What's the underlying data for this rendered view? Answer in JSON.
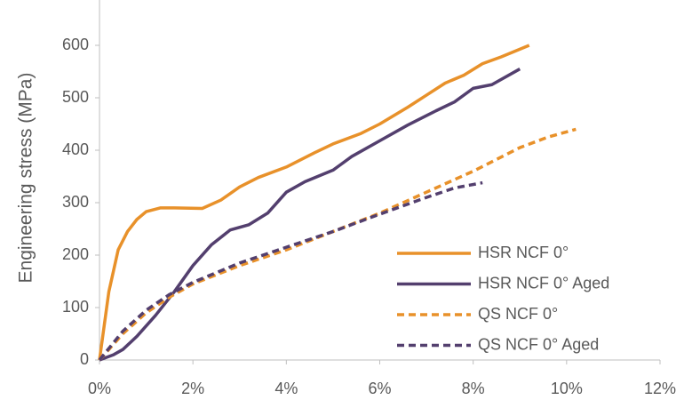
{
  "chart_data": {
    "type": "line",
    "y_label": "Engineering stress (MPa)",
    "xlim": [
      0,
      12
    ],
    "xticks": [
      {
        "value": 0,
        "label": "0%"
      },
      {
        "value": 2,
        "label": "2%"
      },
      {
        "value": 4,
        "label": "4%"
      },
      {
        "value": 6,
        "label": "6%"
      },
      {
        "value": 8,
        "label": "8%"
      },
      {
        "value": 10,
        "label": "10%"
      },
      {
        "value": 12,
        "label": "12%"
      }
    ],
    "ylim": [
      0,
      700
    ],
    "yticks": [
      0,
      100,
      200,
      300,
      400,
      500,
      600
    ],
    "grid": false,
    "legend": "lower right",
    "series": [
      {
        "name": "HSR NCF 0°",
        "color": "#e8912a",
        "dashed": false,
        "x": [
          0,
          0.2,
          0.4,
          0.6,
          0.8,
          1.0,
          1.3,
          1.6,
          2.2,
          2.6,
          3.0,
          3.4,
          4.0,
          4.6,
          5.0,
          5.6,
          6.0,
          6.6,
          7.0,
          7.4,
          7.8,
          8.2,
          8.6,
          9.2
        ],
        "values": [
          0,
          130,
          210,
          245,
          268,
          283,
          290,
          290,
          289,
          305,
          330,
          348,
          368,
          395,
          412,
          432,
          450,
          482,
          505,
          528,
          543,
          565,
          578,
          600
        ]
      },
      {
        "name": "HSR NCF 0° Aged",
        "color": "#533f6e",
        "dashed": false,
        "x": [
          0,
          0.3,
          0.5,
          0.8,
          1.2,
          1.6,
          2.0,
          2.4,
          2.8,
          3.2,
          3.6,
          4.0,
          4.4,
          5.0,
          5.4,
          6.0,
          6.6,
          7.2,
          7.6,
          8.0,
          8.4,
          9.0
        ],
        "values": [
          0,
          10,
          20,
          45,
          85,
          130,
          180,
          220,
          248,
          258,
          280,
          320,
          340,
          362,
          388,
          418,
          448,
          475,
          492,
          518,
          525,
          555
        ]
      },
      {
        "name": "QS NCF 0°",
        "color": "#e8912a",
        "dashed": true,
        "x": [
          0,
          0.5,
          1.0,
          1.5,
          2.0,
          3.0,
          4.0,
          5.0,
          6.0,
          7.0,
          8.0,
          9.0,
          9.6,
          10.2
        ],
        "values": [
          0,
          50,
          90,
          120,
          145,
          180,
          210,
          245,
          280,
          320,
          360,
          405,
          425,
          440
        ]
      },
      {
        "name": "QS NCF 0° Aged",
        "color": "#533f6e",
        "dashed": true,
        "x": [
          0,
          0.5,
          1.0,
          1.5,
          2.0,
          3.0,
          4.0,
          5.0,
          6.0,
          7.0,
          7.6,
          8.2
        ],
        "values": [
          0,
          55,
          95,
          125,
          148,
          185,
          215,
          245,
          278,
          310,
          328,
          338
        ]
      }
    ]
  }
}
